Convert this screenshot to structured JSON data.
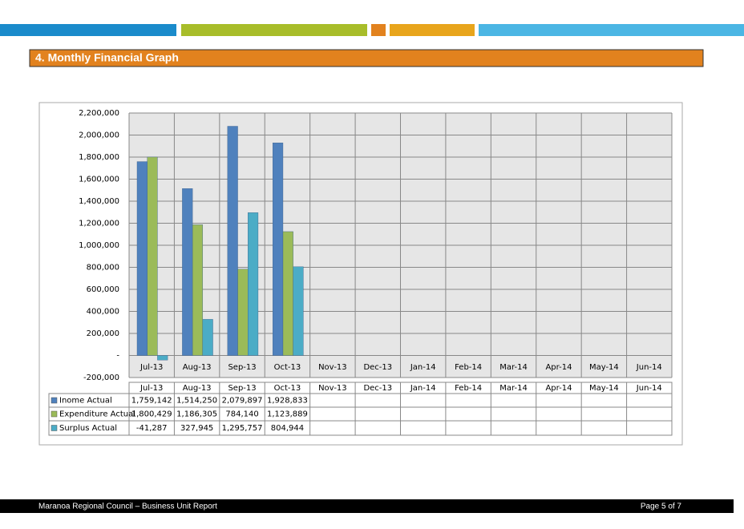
{
  "section_title": "4.  Monthly Financial Graph",
  "chart_data": {
    "type": "bar",
    "categories": [
      "Jul-13",
      "Aug-13",
      "Sep-13",
      "Oct-13",
      "Nov-13",
      "Dec-13",
      "Jan-14",
      "Feb-14",
      "Mar-14",
      "Apr-14",
      "May-14",
      "Jun-14"
    ],
    "series": [
      {
        "name": "Inome Actual",
        "color": "#4f81bd",
        "values": [
          1759142,
          1514250,
          2079897,
          1928833,
          null,
          null,
          null,
          null,
          null,
          null,
          null,
          null
        ],
        "value_labels": [
          "1,759,142",
          "1,514,250",
          "2,079,897",
          "1,928,833",
          null,
          null,
          null,
          null,
          null,
          null,
          null,
          null
        ]
      },
      {
        "name": "Expenditure Actual",
        "color": "#9bbb59",
        "values": [
          1800429,
          1186305,
          784140,
          1123889,
          null,
          null,
          null,
          null,
          null,
          null,
          null,
          null
        ],
        "value_labels": [
          "1,800,429",
          "1,186,305",
          "784,140",
          "1,123,889",
          null,
          null,
          null,
          null,
          null,
          null,
          null,
          null
        ]
      },
      {
        "name": "Surplus Actual",
        "color": "#4bacc6",
        "values": [
          -41287,
          327945,
          1295757,
          804944,
          null,
          null,
          null,
          null,
          null,
          null,
          null,
          null
        ],
        "value_labels": [
          "-41,287",
          "327,945",
          "1,295,757",
          "804,944",
          null,
          null,
          null,
          null,
          null,
          null,
          null,
          null
        ]
      }
    ],
    "ylim": [
      -200000,
      2200000
    ],
    "yticks": [
      {
        "value": 2200000,
        "label": "2,200,000"
      },
      {
        "value": 2000000,
        "label": "2,000,000"
      },
      {
        "value": 1800000,
        "label": "1,800,000"
      },
      {
        "value": 1600000,
        "label": "1,600,000"
      },
      {
        "value": 1400000,
        "label": "1,400,000"
      },
      {
        "value": 1200000,
        "label": "1,200,000"
      },
      {
        "value": 1000000,
        "label": "1,000,000"
      },
      {
        "value": 800000,
        "label": "800,000"
      },
      {
        "value": 600000,
        "label": "600,000"
      },
      {
        "value": 400000,
        "label": "400,000"
      },
      {
        "value": 200000,
        "label": "200,000"
      },
      {
        "value": 0,
        "label": "-"
      },
      {
        "value": -200000,
        "label": "-200,000"
      }
    ],
    "grid": true
  },
  "footer": {
    "left": "Maranoa Regional Council – Business Unit Report",
    "right": "Page 5 of 7"
  }
}
